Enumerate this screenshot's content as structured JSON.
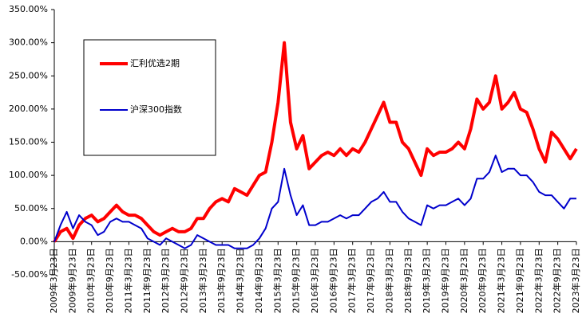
{
  "chart_data": {
    "type": "line",
    "categories": [
      "2009年3月23日",
      null,
      null,
      "2009年9月23日",
      null,
      null,
      "2010年3月23日",
      null,
      null,
      "2010年9月23日",
      null,
      null,
      "2011年3月23日",
      null,
      null,
      "2011年9月23日",
      null,
      null,
      "2012年3月23日",
      null,
      null,
      "2012年9月23日",
      null,
      null,
      "2013年3月23日",
      null,
      null,
      "2013年9月23日",
      null,
      null,
      "2014年3月23日",
      null,
      null,
      "2014年9月23日",
      null,
      null,
      "2015年3月23日",
      null,
      null,
      "2015年9月23日",
      null,
      null,
      "2016年3月23日",
      null,
      null,
      "2016年9月23日",
      null,
      null,
      "2017年3月23日",
      null,
      null,
      "2017年9月23日",
      null,
      null,
      "2018年3月23日",
      null,
      null,
      "2018年9月23日",
      null,
      null,
      "2019年3月23日",
      null,
      null,
      "2019年9月23日",
      null,
      null,
      "2020年3月23日",
      null,
      null,
      "2020年9月23日",
      null,
      null,
      "2021年3月23日",
      null,
      null,
      "2021年9月23日",
      null,
      null,
      "2022年3月23日",
      null,
      null,
      "2022年9月23日",
      null,
      null,
      "2023年3月23日"
    ],
    "series": [
      {
        "name": "汇利优选2期",
        "color": "#ff0000",
        "values": [
          0,
          15,
          20,
          5,
          25,
          35,
          40,
          30,
          35,
          45,
          55,
          45,
          40,
          40,
          35,
          25,
          15,
          10,
          15,
          20,
          15,
          15,
          20,
          35,
          35,
          50,
          60,
          65,
          60,
          80,
          75,
          70,
          85,
          100,
          105,
          150,
          210,
          300,
          180,
          140,
          160,
          110,
          120,
          130,
          135,
          130,
          140,
          130,
          140,
          135,
          150,
          170,
          190,
          210,
          180,
          180,
          150,
          140,
          120,
          100,
          140,
          130,
          135,
          135,
          140,
          150,
          140,
          170,
          215,
          200,
          210,
          250,
          200,
          210,
          225,
          200,
          195,
          170,
          140,
          120,
          165,
          155,
          140,
          125,
          140
        ]
      },
      {
        "name": "沪深300指数",
        "color": "#0000cc",
        "values": [
          0,
          25,
          45,
          20,
          40,
          30,
          25,
          10,
          15,
          30,
          35,
          30,
          30,
          25,
          20,
          5,
          0,
          -5,
          5,
          0,
          -5,
          -10,
          -5,
          10,
          5,
          0,
          -5,
          -5,
          -5,
          -10,
          -10,
          -10,
          -5,
          5,
          20,
          50,
          60,
          110,
          70,
          40,
          55,
          25,
          25,
          30,
          30,
          35,
          40,
          35,
          40,
          40,
          50,
          60,
          65,
          75,
          60,
          60,
          45,
          35,
          30,
          25,
          55,
          50,
          55,
          55,
          60,
          65,
          55,
          65,
          95,
          95,
          105,
          130,
          105,
          110,
          110,
          100,
          100,
          90,
          75,
          70,
          70,
          60,
          50,
          65,
          65
        ]
      }
    ],
    "ylim": [
      -50,
      350
    ],
    "yticks": [
      {
        "value": -50,
        "label": "-50.00%"
      },
      {
        "value": 0,
        "label": "0.00%"
      },
      {
        "value": 50,
        "label": "50.00%"
      },
      {
        "value": 100,
        "label": "100.00%"
      },
      {
        "value": 150,
        "label": "150.00%"
      },
      {
        "value": 200,
        "label": "200.00%"
      },
      {
        "value": 250,
        "label": "250.00%"
      },
      {
        "value": 300,
        "label": "300.00%"
      },
      {
        "value": 350,
        "label": "350.00%"
      }
    ],
    "legend": "upper left"
  }
}
